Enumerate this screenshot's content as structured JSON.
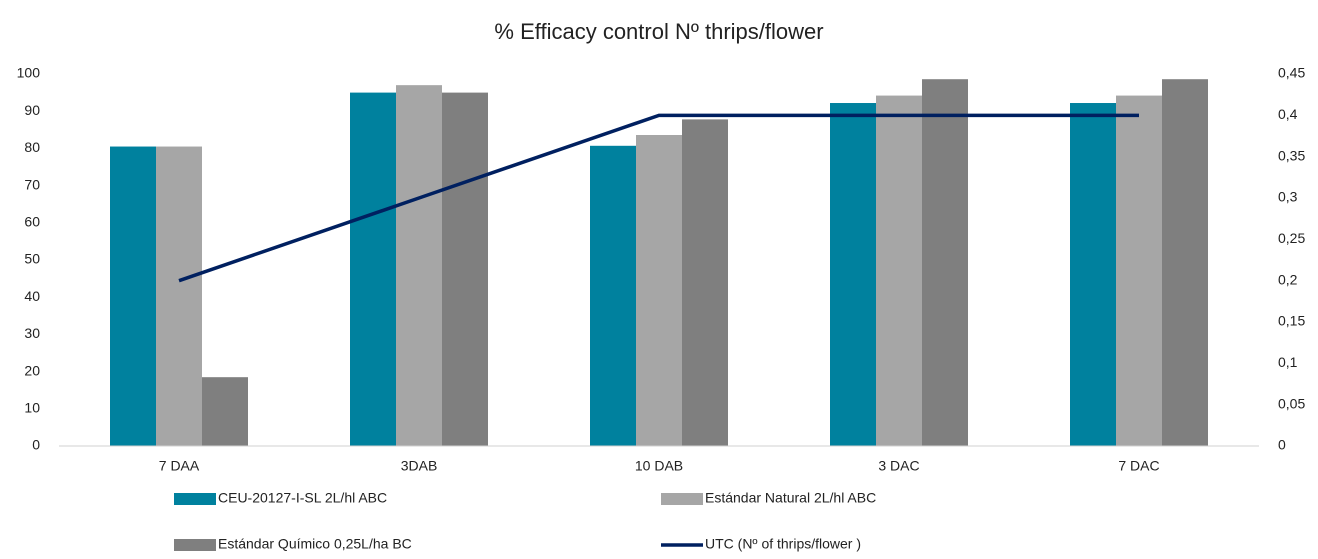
{
  "chart_data": {
    "type": "bar",
    "title": "% Efficacy control Nº thrips/flower",
    "categories": [
      "7 DAA",
      "3DAB",
      "10 DAB",
      "3 DAC",
      "7 DAC"
    ],
    "series": [
      {
        "name": "CEU-20127-I-SL 2L/hl ABC",
        "color": "#00819e",
        "values": [
          80.5,
          95,
          80.7,
          92.2,
          92.2
        ]
      },
      {
        "name": "Estándar Natural 2L/hl ABC",
        "color": "#a6a6a6",
        "values": [
          80.5,
          97,
          83.6,
          94.2,
          94.2
        ]
      },
      {
        "name": "Estándar Químico 0,25L/ha BC",
        "color": "#7f7f7f",
        "values": [
          18.5,
          95,
          87.8,
          98.6,
          98.6
        ]
      },
      {
        "name": "UTC (Nº of thrips/flower )",
        "color": "#002060",
        "type": "line",
        "axis": "y2",
        "values": [
          0.2,
          0.3,
          0.4,
          0.4,
          0.4
        ]
      }
    ],
    "ylim": [
      0,
      100
    ],
    "yticks": [
      0,
      10,
      20,
      30,
      40,
      50,
      60,
      70,
      80,
      90,
      100
    ],
    "y2lim": [
      0,
      0.45
    ],
    "y2ticks": [
      0,
      {
        "value": 0.05,
        "label": "0,05"
      },
      {
        "value": 0.1,
        "label": "0,1"
      },
      {
        "value": 0.15,
        "label": "0,15"
      },
      {
        "value": 0.2,
        "label": "0,2"
      },
      {
        "value": 0.25,
        "label": "0,25"
      },
      {
        "value": 0.3,
        "label": "0,3"
      },
      {
        "value": 0.35,
        "label": "0,35"
      },
      {
        "value": 0.4,
        "label": "0,4"
      },
      {
        "value": 0.45,
        "label": "0,45"
      }
    ],
    "grid": false
  }
}
